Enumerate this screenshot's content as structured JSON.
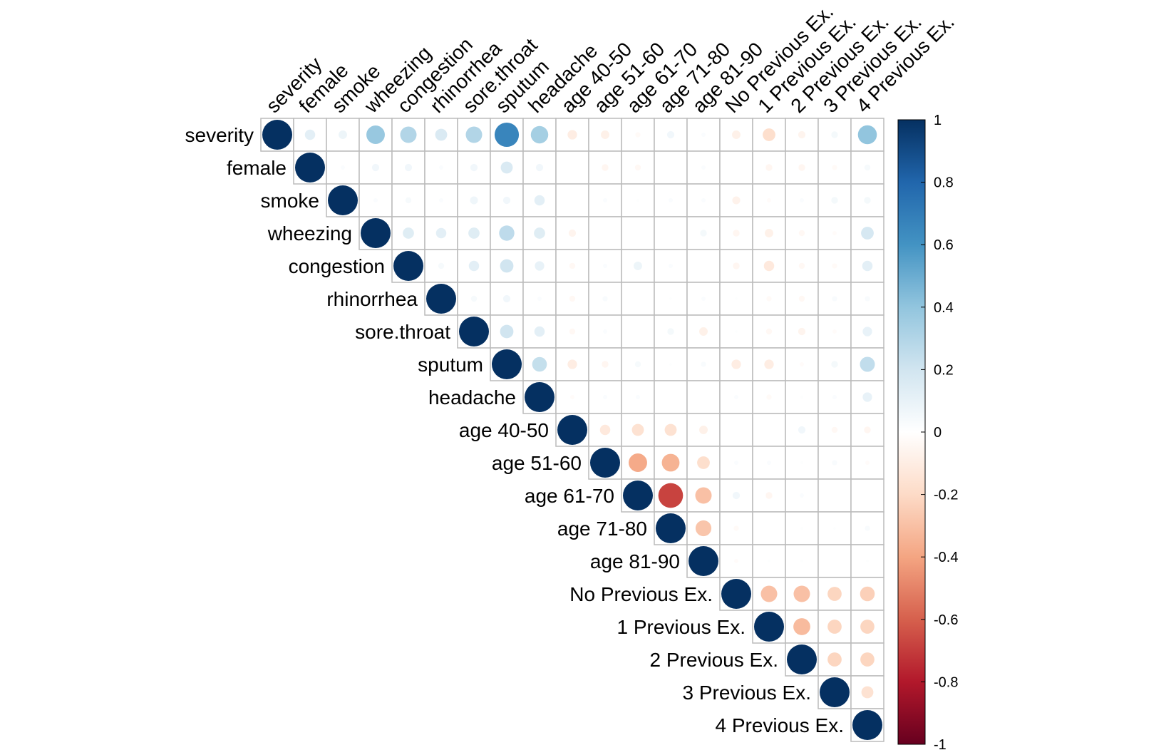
{
  "chart_data": {
    "type": "heatmap",
    "style": "correlogram-upper-circles",
    "variables": [
      "severity",
      "female",
      "smoke",
      "wheezing",
      "congestion",
      "rhinorrhea",
      "sore.throat",
      "sputum",
      "headache",
      "age 40-50",
      "age 51-60",
      "age 61-70",
      "age 71-80",
      "age 81-90",
      "No Previous Ex.",
      "1 Previous Ex.",
      "2 Previous Ex.",
      "3 Previous Ex.",
      "4 Previous Ex."
    ],
    "matrix": [
      [
        1,
        0.12,
        0.08,
        0.38,
        0.3,
        0.16,
        0.3,
        0.66,
        0.34,
        -0.1,
        -0.08,
        -0.03,
        0.06,
        0.02,
        -0.08,
        -0.18,
        -0.06,
        0.05,
        0.4
      ],
      [
        null,
        1,
        0.02,
        0.06,
        0.06,
        0.02,
        0.06,
        0.16,
        0.06,
        0,
        -0.05,
        -0.04,
        0,
        0.02,
        0,
        -0.05,
        -0.05,
        -0.03,
        0.04
      ],
      [
        null,
        null,
        1,
        0.02,
        0.04,
        0.02,
        0.07,
        0.06,
        0.12,
        0,
        0.02,
        0.01,
        0.02,
        0.02,
        -0.07,
        -0.02,
        0.02,
        0.05,
        0.05
      ],
      [
        null,
        null,
        null,
        1,
        0.14,
        0.12,
        0.14,
        0.26,
        0.14,
        -0.06,
        0,
        0,
        0,
        0.05,
        -0.05,
        -0.08,
        -0.04,
        -0.02,
        0.18
      ],
      [
        null,
        null,
        null,
        null,
        1,
        0.04,
        0.12,
        0.2,
        0.1,
        -0.04,
        0.02,
        0.08,
        0.02,
        0,
        -0.05,
        -0.12,
        -0.04,
        -0.03,
        0.12
      ],
      [
        null,
        null,
        null,
        null,
        null,
        1,
        0.04,
        0.06,
        0.02,
        -0.04,
        0.03,
        0,
        0.01,
        0.02,
        0.01,
        -0.03,
        -0.04,
        0.03,
        0.03
      ],
      [
        null,
        null,
        null,
        null,
        null,
        null,
        1,
        0.2,
        0.12,
        -0.04,
        0.02,
        0,
        0.05,
        -0.08,
        0.01,
        -0.04,
        -0.06,
        -0.02,
        0.1
      ],
      [
        null,
        null,
        null,
        null,
        null,
        null,
        null,
        1,
        0.24,
        -0.1,
        -0.05,
        0.04,
        0.01,
        0.03,
        -0.1,
        -0.1,
        -0.02,
        0.05,
        0.25
      ],
      [
        null,
        null,
        null,
        null,
        null,
        null,
        null,
        null,
        1,
        -0.02,
        0.02,
        0.02,
        0,
        0,
        0.02,
        -0.03,
        0.01,
        0.02,
        0.1
      ],
      [
        null,
        null,
        null,
        null,
        null,
        null,
        null,
        null,
        null,
        1,
        -0.12,
        -0.16,
        -0.16,
        -0.08,
        0,
        0,
        0.06,
        -0.04,
        -0.05
      ],
      [
        null,
        null,
        null,
        null,
        null,
        null,
        null,
        null,
        null,
        null,
        1,
        -0.38,
        -0.35,
        -0.18,
        0.02,
        0.02,
        0.01,
        0.03,
        -0.02
      ],
      [
        null,
        null,
        null,
        null,
        null,
        null,
        null,
        null,
        null,
        null,
        null,
        1,
        -0.68,
        -0.3,
        0.06,
        -0.05,
        0.02,
        0,
        0
      ],
      [
        null,
        null,
        null,
        null,
        null,
        null,
        null,
        null,
        null,
        null,
        null,
        null,
        1,
        -0.28,
        -0.03,
        0,
        0.01,
        0.01,
        0.03
      ],
      [
        null,
        null,
        null,
        null,
        null,
        null,
        null,
        null,
        null,
        null,
        null,
        null,
        null,
        1,
        -0.02,
        0.01,
        0.01,
        0,
        0.01
      ],
      [
        null,
        null,
        null,
        null,
        null,
        null,
        null,
        null,
        null,
        null,
        null,
        null,
        null,
        null,
        1,
        -0.3,
        -0.3,
        -0.22,
        -0.24
      ],
      [
        null,
        null,
        null,
        null,
        null,
        null,
        null,
        null,
        null,
        null,
        null,
        null,
        null,
        null,
        null,
        1,
        -0.32,
        -0.22,
        -0.22
      ],
      [
        null,
        null,
        null,
        null,
        null,
        null,
        null,
        null,
        null,
        null,
        null,
        null,
        null,
        null,
        null,
        null,
        1,
        -0.22,
        -0.22
      ],
      [
        null,
        null,
        null,
        null,
        null,
        null,
        null,
        null,
        null,
        null,
        null,
        null,
        null,
        null,
        null,
        null,
        null,
        1,
        -0.16
      ],
      [
        null,
        null,
        null,
        null,
        null,
        null,
        null,
        null,
        null,
        null,
        null,
        null,
        null,
        null,
        null,
        null,
        null,
        null,
        1
      ]
    ],
    "value_range": [
      -1,
      1
    ],
    "colorbar": {
      "ticks": [
        "1",
        "0.8",
        "0.6",
        "0.4",
        "0.2",
        "0",
        "-0.2",
        "-0.4",
        "-0.6",
        "-0.8",
        "-1"
      ],
      "colors": [
        "#67001F",
        "#B2182B",
        "#D6604D",
        "#F4A582",
        "#FDDBC7",
        "#FFFFFF",
        "#D1E5F0",
        "#92C5DE",
        "#4393C3",
        "#2166AC",
        "#053061"
      ]
    },
    "grid": true,
    "legend_position": "right",
    "grid_color": "#bbbbbb"
  }
}
